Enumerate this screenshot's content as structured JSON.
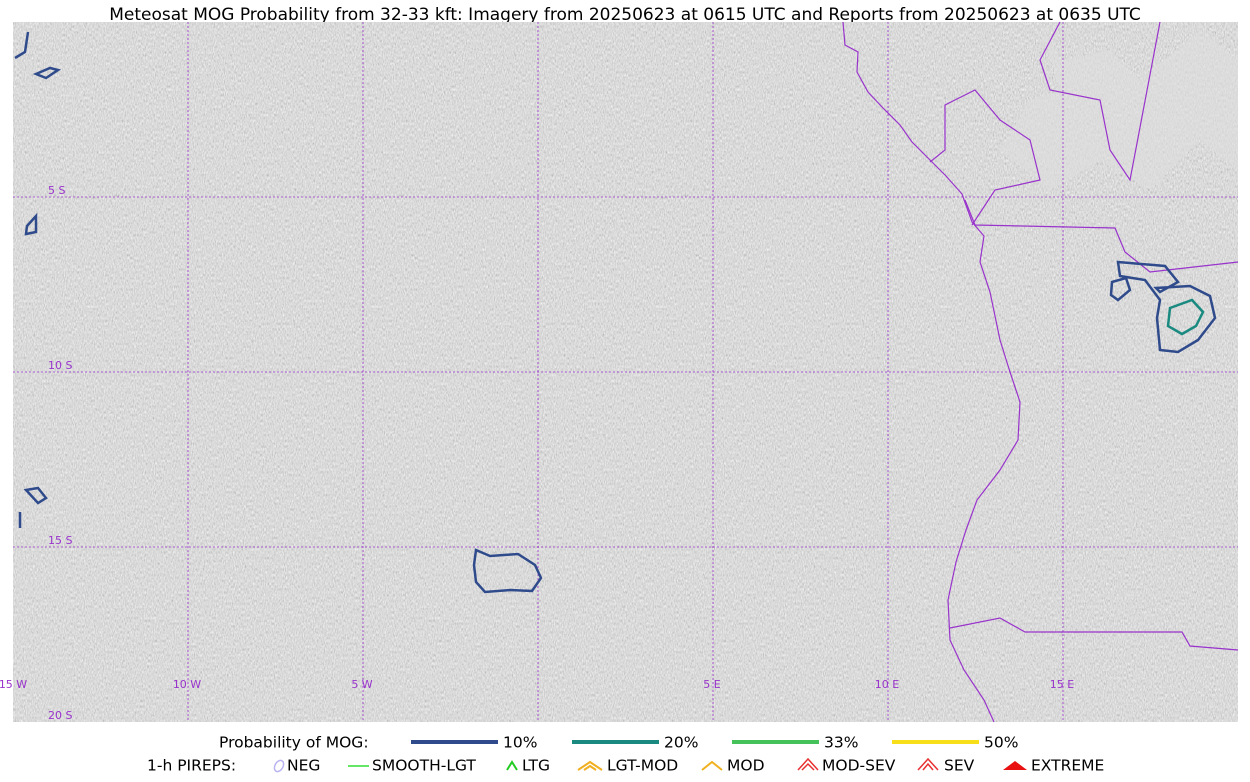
{
  "header": {
    "title": "Meteosat MOG Probability from 32-33 kft: Imagery from 20250623 at 0615 UTC and Reports from 20250623 at 0635 UTC"
  },
  "map": {
    "lat_labels": [
      "5 S",
      "10 S",
      "15 S",
      "20 S"
    ],
    "lon_labels": [
      "15 W",
      "10 W",
      "5 W",
      "5 E",
      "10 E",
      "15 E"
    ]
  },
  "legend": {
    "mog": {
      "label": "Probability of MOG:",
      "items": [
        {
          "label": "10%",
          "color": "#2f4b8c"
        },
        {
          "label": "20%",
          "color": "#1a8a80"
        },
        {
          "label": "33%",
          "color": "#45c25a"
        },
        {
          "label": "50%",
          "color": "#f7e01a"
        }
      ]
    },
    "pireps": {
      "label": "1-h PIREPS:",
      "items": [
        {
          "label": "NEG",
          "color": "#b9b4f2"
        },
        {
          "label": "SMOOTH-LGT",
          "color": "#33dd33"
        },
        {
          "label": "LTG",
          "color": "#22cc22"
        },
        {
          "label": "LGT-MOD",
          "color": "#f0b020"
        },
        {
          "label": "MOD",
          "color": "#f0b020"
        },
        {
          "label": "MOD-SEV",
          "color": "#e83030"
        },
        {
          "label": "SEV",
          "color": "#e83030"
        },
        {
          "label": "EXTREME",
          "color": "#e81010"
        }
      ]
    }
  }
}
